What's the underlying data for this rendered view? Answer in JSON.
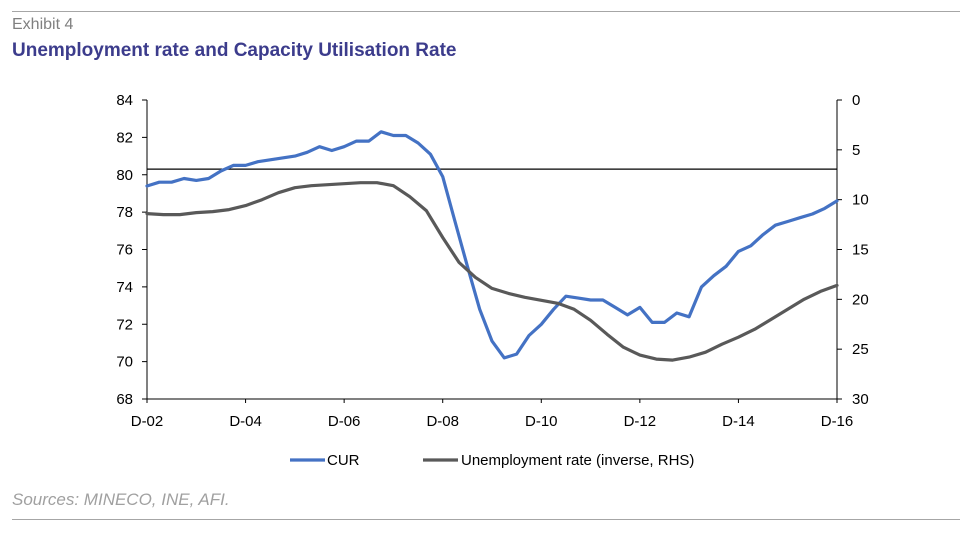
{
  "header": {
    "exhibit": "Exhibit 4",
    "title": "Unemployment rate and Capacity Utilisation Rate"
  },
  "footer": {
    "source": "Sources: MINECO, INE, AFI."
  },
  "chart_data": {
    "type": "line",
    "title": "Unemployment rate and Capacity Utilisation Rate",
    "xlabel": "",
    "ylabel": "",
    "x_ticks": [
      "D-02",
      "D-04",
      "D-06",
      "D-08",
      "D-10",
      "D-12",
      "D-14",
      "D-16"
    ],
    "x_range": [
      2002.917,
      2016.917
    ],
    "ylim": [
      68,
      84
    ],
    "y_ticks": [
      68,
      70,
      72,
      74,
      76,
      78,
      80,
      82,
      84
    ],
    "y2lim": [
      0,
      30
    ],
    "y2_inverted": true,
    "y2_ticks": [
      0,
      5,
      10,
      15,
      20,
      25,
      30
    ],
    "reference_line": {
      "axis": "y",
      "value": 80.3
    },
    "legend_position": "bottom",
    "colors": {
      "CUR": "#4472c4",
      "Unemployment rate (inverse, RHS)": "#595959"
    },
    "series": [
      {
        "name": "CUR",
        "axis": "left",
        "x": [
          2002.917,
          2003.167,
          2003.417,
          2003.667,
          2003.917,
          2004.167,
          2004.417,
          2004.667,
          2004.917,
          2005.167,
          2005.417,
          2005.667,
          2005.917,
          2006.167,
          2006.417,
          2006.667,
          2006.917,
          2007.167,
          2007.417,
          2007.667,
          2007.917,
          2008.167,
          2008.417,
          2008.667,
          2008.917,
          2009.167,
          2009.417,
          2009.667,
          2009.917,
          2010.167,
          2010.417,
          2010.667,
          2010.917,
          2011.167,
          2011.417,
          2011.667,
          2011.917,
          2012.167,
          2012.417,
          2012.667,
          2012.917,
          2013.167,
          2013.417,
          2013.667,
          2013.917,
          2014.167,
          2014.417,
          2014.667,
          2014.917,
          2015.167,
          2015.417,
          2015.667,
          2015.917,
          2016.167,
          2016.417,
          2016.667,
          2016.917
        ],
        "values": [
          79.4,
          79.6,
          79.6,
          79.8,
          79.7,
          79.8,
          80.2,
          80.5,
          80.5,
          80.7,
          80.8,
          80.9,
          81.0,
          81.2,
          81.5,
          81.3,
          81.5,
          81.8,
          81.8,
          82.3,
          82.1,
          82.1,
          81.7,
          81.1,
          79.9,
          77.5,
          75.1,
          72.8,
          71.1,
          70.2,
          70.4,
          71.4,
          72.0,
          72.8,
          73.5,
          73.4,
          73.3,
          73.3,
          72.9,
          72.5,
          72.9,
          72.1,
          72.1,
          72.6,
          72.4,
          74.0,
          74.6,
          75.1,
          75.9,
          76.2,
          76.8,
          77.3,
          77.5,
          77.7,
          77.9,
          78.2,
          78.6
        ]
      },
      {
        "name": "Unemployment rate (inverse, RHS)",
        "axis": "right",
        "x": [
          2002.917,
          2003.25,
          2003.583,
          2003.917,
          2004.25,
          2004.583,
          2004.917,
          2005.25,
          2005.583,
          2005.917,
          2006.25,
          2006.583,
          2006.917,
          2007.25,
          2007.583,
          2007.917,
          2008.25,
          2008.583,
          2008.917,
          2009.25,
          2009.583,
          2009.917,
          2010.25,
          2010.583,
          2010.917,
          2011.25,
          2011.583,
          2011.917,
          2012.25,
          2012.583,
          2012.917,
          2013.25,
          2013.583,
          2013.917,
          2014.25,
          2014.583,
          2014.917,
          2015.25,
          2015.583,
          2015.917,
          2016.25,
          2016.583,
          2016.917
        ],
        "values": [
          11.4,
          11.5,
          11.5,
          11.3,
          11.2,
          11.0,
          10.6,
          10.0,
          9.3,
          8.8,
          8.6,
          8.5,
          8.4,
          8.3,
          8.3,
          8.6,
          9.7,
          11.1,
          13.8,
          16.3,
          17.8,
          18.9,
          19.4,
          19.8,
          20.1,
          20.4,
          21.0,
          22.1,
          23.5,
          24.8,
          25.6,
          26.0,
          26.1,
          25.8,
          25.3,
          24.5,
          23.8,
          23.0,
          22.0,
          21.0,
          20.0,
          19.2,
          18.6
        ]
      }
    ]
  }
}
